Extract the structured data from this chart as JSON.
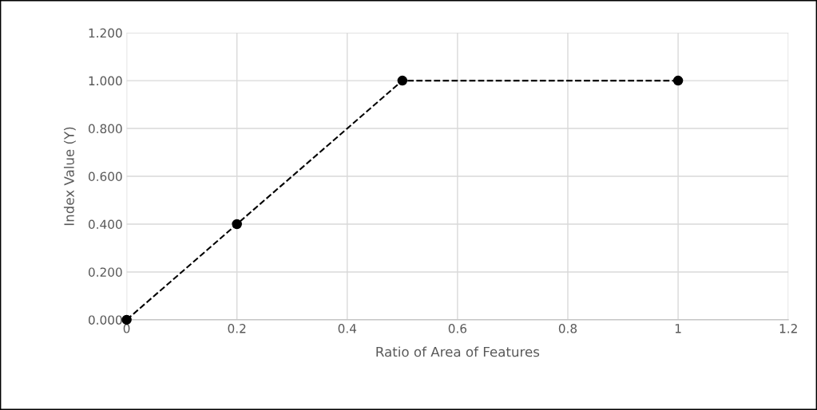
{
  "chart_data": {
    "type": "line",
    "xlabel": "Ratio of Area of Features",
    "ylabel": "Index Value (Y)",
    "x": [
      0,
      0.2,
      0.5,
      1
    ],
    "series": [
      {
        "color": "#000000",
        "values": [
          0,
          0.4,
          1,
          1
        ],
        "marker": "circle",
        "line_style": "dashed"
      }
    ],
    "xlim": [
      0,
      1.2
    ],
    "xticks": [
      0,
      0.2,
      0.4,
      0.6,
      0.8,
      1,
      1.2
    ],
    "ylim": [
      0,
      1.2
    ],
    "yticks": [
      {
        "value": 0,
        "label": "0.000"
      },
      {
        "value": 0.2,
        "label": "0.200"
      },
      {
        "value": 0.4,
        "label": "0.400"
      },
      {
        "value": 0.6,
        "label": "0.600"
      },
      {
        "value": 0.8,
        "label": "0.800"
      },
      {
        "value": 1,
        "label": "1.000"
      },
      {
        "value": 1.2,
        "label": "1.200"
      }
    ],
    "grid": true
  }
}
